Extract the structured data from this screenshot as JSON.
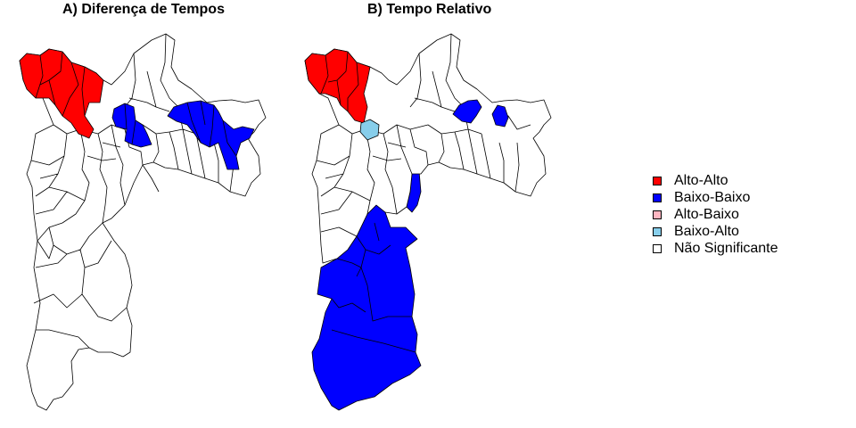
{
  "panels": [
    {
      "title": "A) Diferença de Tempos"
    },
    {
      "title": "B) Tempo Relativo"
    }
  ],
  "legend": {
    "items": [
      {
        "label": "Alto-Alto",
        "color": "#ff0000"
      },
      {
        "label": "Baixo-Baixo",
        "color": "#0000ff"
      },
      {
        "label": "Alto-Baixo",
        "color": "#ffb6c1"
      },
      {
        "label": "Baixo-Alto",
        "color": "#87ceeb"
      },
      {
        "label": "Não Significante",
        "color": "#ffffff"
      }
    ]
  },
  "colors": {
    "alto_alto": "#ff0000",
    "baixo_baixo": "#0000ff",
    "alto_baixo": "#ffb6c1",
    "baixo_alto": "#87ceeb",
    "nao_significante": "#ffffff",
    "border": "#000000"
  }
}
